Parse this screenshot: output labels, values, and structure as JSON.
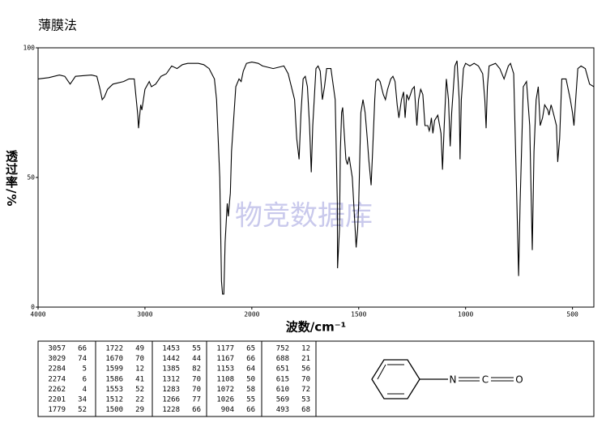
{
  "chart_data": {
    "type": "line",
    "title": "薄膜法",
    "watermark": "物竞数据库",
    "x_label": "波数/cm⁻¹",
    "y_label": "透过率/%",
    "xlim": [
      4000,
      400
    ],
    "x_break": 2000,
    "ylim": [
      0,
      100
    ],
    "xticks": [
      4000,
      3000,
      2000,
      1500,
      1000,
      500
    ],
    "yticks": [
      0,
      50,
      100
    ],
    "color": "#000000",
    "x": [
      4000,
      3900,
      3800,
      3750,
      3700,
      3650,
      3500,
      3450,
      3420,
      3400,
      3380,
      3350,
      3300,
      3200,
      3150,
      3100,
      3067,
      3060,
      3040,
      3029,
      3000,
      2960,
      2940,
      2900,
      2850,
      2800,
      2750,
      2700,
      2650,
      2600,
      2500,
      2450,
      2400,
      2350,
      2330,
      2300,
      2284,
      2274,
      2262,
      2250,
      2230,
      2220,
      2210,
      2201,
      2190,
      2150,
      2120,
      2100,
      2080,
      2050,
      2000,
      1970,
      1950,
      1900,
      1850,
      1830,
      1800,
      1790,
      1779,
      1770,
      1760,
      1750,
      1740,
      1730,
      1722,
      1715,
      1700,
      1690,
      1680,
      1670,
      1660,
      1650,
      1630,
      1610,
      1600,
      1599,
      1590,
      1586,
      1580,
      1575,
      1570,
      1560,
      1553,
      1545,
      1530,
      1520,
      1512,
      1505,
      1500,
      1490,
      1480,
      1470,
      1460,
      1453,
      1442,
      1435,
      1425,
      1420,
      1410,
      1400,
      1385,
      1375,
      1365,
      1350,
      1340,
      1330,
      1320,
      1312,
      1300,
      1290,
      1283,
      1275,
      1266,
      1250,
      1240,
      1228,
      1220,
      1210,
      1200,
      1190,
      1177,
      1170,
      1167,
      1160,
      1153,
      1145,
      1130,
      1115,
      1108,
      1100,
      1090,
      1080,
      1072,
      1065,
      1050,
      1040,
      1030,
      1026,
      1020,
      1010,
      1000,
      980,
      960,
      940,
      920,
      910,
      904,
      898,
      890,
      860,
      840,
      820,
      800,
      790,
      775,
      760,
      752,
      745,
      730,
      715,
      700,
      688,
      680,
      670,
      660,
      651,
      640,
      630,
      615,
      610,
      600,
      590,
      575,
      569,
      560,
      550,
      530,
      510,
      500,
      493,
      485,
      475,
      460,
      440,
      420,
      400
    ],
    "values": [
      88,
      88.5,
      89.5,
      89,
      86,
      89,
      89.5,
      89,
      84,
      80,
      81,
      84,
      86,
      87,
      88,
      88,
      74,
      69,
      78,
      76,
      84,
      87,
      85,
      86,
      89,
      90,
      93,
      92,
      93.5,
      94,
      94,
      93.5,
      92,
      88,
      80,
      50,
      10,
      5,
      5,
      25,
      40,
      35,
      40,
      44,
      60,
      85,
      88,
      87,
      91,
      94,
      94.5,
      94,
      93,
      92,
      93,
      90,
      80,
      65,
      57,
      75,
      88,
      89,
      85,
      70,
      52,
      70,
      92,
      93,
      91,
      80,
      85,
      92,
      92,
      80,
      40,
      15,
      30,
      60,
      75,
      77,
      70,
      57,
      55,
      58,
      50,
      35,
      23,
      30,
      40,
      75,
      80,
      75,
      65,
      57,
      47,
      60,
      80,
      87,
      88,
      87,
      82,
      80,
      84,
      88,
      89,
      87,
      78,
      73,
      80,
      83,
      73,
      82,
      80,
      84,
      85,
      70,
      80,
      84,
      82,
      70,
      70,
      68,
      69,
      73,
      67,
      72,
      74,
      67,
      53,
      70,
      88,
      80,
      62,
      75,
      93,
      95,
      80,
      57,
      80,
      92,
      94,
      93,
      94,
      93,
      90,
      80,
      69,
      85,
      93,
      94,
      92,
      88,
      93,
      94,
      90,
      40,
      12,
      40,
      85,
      87,
      70,
      22,
      60,
      80,
      85,
      70,
      73,
      78,
      76,
      74,
      78,
      75,
      70,
      56,
      65,
      88,
      88,
      80,
      75,
      70,
      80,
      92,
      93,
      92,
      86,
      85
    ]
  },
  "peak_table": [
    [
      [
        "3057",
        "66"
      ],
      [
        "3029",
        "74"
      ],
      [
        "2284",
        "5"
      ],
      [
        "2274",
        "6"
      ],
      [
        "2262",
        "4"
      ],
      [
        "2201",
        "34"
      ],
      [
        "1779",
        "52"
      ]
    ],
    [
      [
        "1722",
        "49"
      ],
      [
        "1670",
        "70"
      ],
      [
        "1599",
        "12"
      ],
      [
        "1586",
        "41"
      ],
      [
        "1553",
        "52"
      ],
      [
        "1512",
        "22"
      ],
      [
        "1500",
        "29"
      ]
    ],
    [
      [
        "1453",
        "55"
      ],
      [
        "1442",
        "44"
      ],
      [
        "1385",
        "82"
      ],
      [
        "1312",
        "70"
      ],
      [
        "1283",
        "70"
      ],
      [
        "1266",
        "77"
      ],
      [
        "1228",
        "66"
      ]
    ],
    [
      [
        "1177",
        "65"
      ],
      [
        "1167",
        "66"
      ],
      [
        "1153",
        "64"
      ],
      [
        "1108",
        "50"
      ],
      [
        "1072",
        "58"
      ],
      [
        "1026",
        "55"
      ],
      [
        "904",
        "66"
      ]
    ],
    [
      [
        "752",
        "12"
      ],
      [
        "688",
        "21"
      ],
      [
        "651",
        "56"
      ],
      [
        "615",
        "70"
      ],
      [
        "610",
        "72"
      ],
      [
        "569",
        "53"
      ],
      [
        "493",
        "68"
      ]
    ]
  ],
  "structure": {
    "atoms": [
      "N",
      "C",
      "O"
    ]
  }
}
